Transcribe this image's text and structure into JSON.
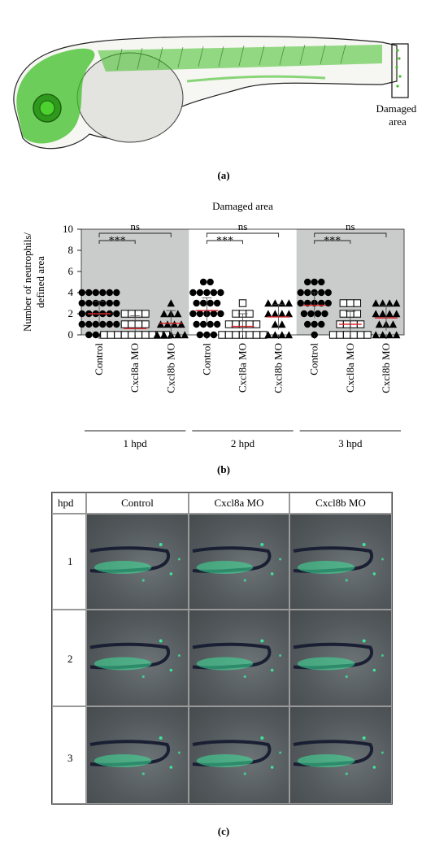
{
  "panel_a": {
    "annotation": "Damaged\narea",
    "annotation_line1": "Damaged",
    "annotation_line2": "area",
    "caption": "(a)"
  },
  "panel_b": {
    "caption": "(b)",
    "chart_data": {
      "type": "scatter",
      "title": "Damaged area",
      "ylabel": "Number of neutrophils/\ndefined area",
      "ylabel_line1": "Number of neutrophils/",
      "ylabel_line2": "defined area",
      "ylim": [
        0,
        10
      ],
      "yticks": [
        0,
        2,
        4,
        6,
        8,
        10
      ],
      "groups": [
        {
          "label": "1 hpd",
          "shaded": true,
          "significance": [
            {
              "between": [
                "Control",
                "Cxcl8a MO"
              ],
              "text": "***"
            },
            {
              "between": [
                "Control",
                "Cxcl8b MO"
              ],
              "text": "ns"
            }
          ],
          "categories": [
            {
              "name": "Control",
              "marker": "circle",
              "mean": 2.0,
              "values": [
                4,
                4,
                4,
                4,
                4,
                4,
                3,
                3,
                3,
                3,
                3,
                3,
                2,
                2,
                2,
                2,
                2,
                2,
                1,
                1,
                1,
                1,
                1,
                1,
                0,
                0,
                0,
                0
              ]
            },
            {
              "name": "Cxcl8a MO",
              "marker": "square",
              "mean": 0.6,
              "values": [
                2,
                2,
                2,
                2,
                1,
                1,
                1,
                1,
                0,
                0,
                0,
                0,
                0,
                0,
                0,
                0,
                0,
                0
              ]
            },
            {
              "name": "Cxcl8b MO",
              "marker": "triangle",
              "mean": 1.1,
              "values": [
                3,
                2,
                2,
                2,
                1,
                1,
                1,
                1,
                0,
                0,
                0,
                0,
                0
              ]
            }
          ]
        },
        {
          "label": "2 hpd",
          "shaded": false,
          "significance": [
            {
              "between": [
                "Control",
                "Cxcl8a MO"
              ],
              "text": "***"
            },
            {
              "between": [
                "Control",
                "Cxcl8b MO"
              ],
              "text": "ns"
            }
          ],
          "categories": [
            {
              "name": "Control",
              "marker": "circle",
              "mean": 2.3,
              "values": [
                5,
                5,
                4,
                4,
                4,
                4,
                4,
                3,
                3,
                3,
                3,
                2,
                2,
                2,
                2,
                2,
                1,
                1,
                1,
                1,
                0,
                0,
                0
              ]
            },
            {
              "name": "Cxcl8a MO",
              "marker": "square",
              "mean": 0.8,
              "values": [
                3,
                2,
                2,
                2,
                1,
                1,
                1,
                1,
                1,
                0,
                0,
                0,
                0,
                0,
                0,
                0
              ]
            },
            {
              "name": "Cxcl8b MO",
              "marker": "triangle",
              "mean": 1.7,
              "values": [
                3,
                3,
                3,
                3,
                2,
                2,
                2,
                2,
                1,
                1,
                0,
                0,
                0,
                0
              ]
            }
          ]
        },
        {
          "label": "3 hpd",
          "shaded": true,
          "significance": [
            {
              "between": [
                "Control",
                "Cxcl8a MO"
              ],
              "text": "***"
            },
            {
              "between": [
                "Control",
                "Cxcl8b MO"
              ],
              "text": "ns"
            }
          ],
          "categories": [
            {
              "name": "Control",
              "marker": "circle",
              "mean": 2.8,
              "values": [
                5,
                5,
                5,
                4,
                4,
                4,
                4,
                4,
                3,
                3,
                3,
                3,
                3,
                2,
                2,
                2,
                2,
                1,
                1,
                1,
                0
              ]
            },
            {
              "name": "Cxcl8a MO",
              "marker": "square",
              "mean": 1.0,
              "values": [
                3,
                3,
                3,
                2,
                2,
                2,
                1,
                1,
                1,
                1,
                0,
                0,
                0,
                0,
                0,
                0
              ]
            },
            {
              "name": "Cxcl8b MO",
              "marker": "triangle",
              "mean": 1.6,
              "values": [
                3,
                3,
                3,
                3,
                2,
                2,
                2,
                2,
                1,
                1,
                1,
                0,
                0,
                0,
                0
              ]
            }
          ]
        }
      ]
    }
  },
  "panel_c": {
    "caption": "(c)",
    "corner_header": "hpd",
    "col_headers": [
      "Control",
      "Cxcl8a MO",
      "Cxcl8b MO"
    ],
    "row_headers": [
      "1",
      "2",
      "3"
    ]
  },
  "colors": {
    "shade": "#c9ccca",
    "mean_line": "#e0262a",
    "fluorescence": "#3ee49a",
    "embryo_green": "#3fbf27"
  }
}
